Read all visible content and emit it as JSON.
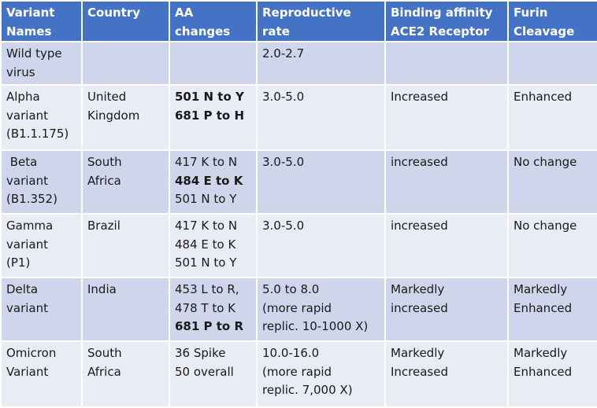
{
  "table": {
    "header": [
      [
        "Variant",
        "Names"
      ],
      [
        "Country"
      ],
      [
        "AA",
        "changes"
      ],
      [
        "Reproductive",
        "rate"
      ],
      [
        "Binding affinity",
        "ACE2 Receptor"
      ],
      [
        "Furin",
        "Cleavage"
      ]
    ],
    "rows": [
      [
        [
          "Wild type",
          "virus"
        ],
        [],
        [],
        [
          "2.0-2.7"
        ],
        [],
        []
      ],
      [
        [
          "Alpha",
          "variant",
          "(B1.1.175)"
        ],
        [
          "United",
          "Kingdom"
        ],
        [
          {
            "text": "501 N to Y",
            "bold": true
          },
          {
            "text": "681 P to H",
            "bold": true
          }
        ],
        [
          "3.0-5.0"
        ],
        [
          "Increased"
        ],
        [
          "Enhanced"
        ]
      ],
      [
        [
          " Beta",
          "variant",
          "(B1.352)"
        ],
        [
          "South",
          "Africa"
        ],
        [
          "417 K to N",
          {
            "text": "484 E to K",
            "bold": true
          },
          "501 N to Y"
        ],
        [
          "3.0-5.0"
        ],
        [
          "increased"
        ],
        [
          "No change"
        ]
      ],
      [
        [
          "Gamma",
          "variant",
          "(P1)"
        ],
        [
          "Brazil"
        ],
        [
          "417 K to N",
          "484 E to K",
          "501 N to Y"
        ],
        [
          "3.0-5.0"
        ],
        [
          "increased"
        ],
        [
          "No change"
        ]
      ],
      [
        [
          "Delta",
          "variant"
        ],
        [
          "India"
        ],
        [
          "453 L to R,",
          "478 T to K",
          {
            "text": "681 P to R",
            "bold": true
          }
        ],
        [
          "5.0 to 8.0",
          "(more rapid",
          "replic. 10-1000 X)"
        ],
        [
          "Markedly",
          "increased"
        ],
        [
          "Markedly",
          "Enhanced"
        ]
      ],
      [
        [
          "Omicron",
          "Variant"
        ],
        [
          "South",
          "Africa"
        ],
        [
          "36 Spike",
          "50 overall"
        ],
        [
          "10.0-16.0",
          "(more rapid",
          "replic. 7,000 X)"
        ],
        [
          "Markedly",
          "Increased"
        ],
        [
          "Markedly",
          "Enhanced"
        ]
      ]
    ]
  }
}
